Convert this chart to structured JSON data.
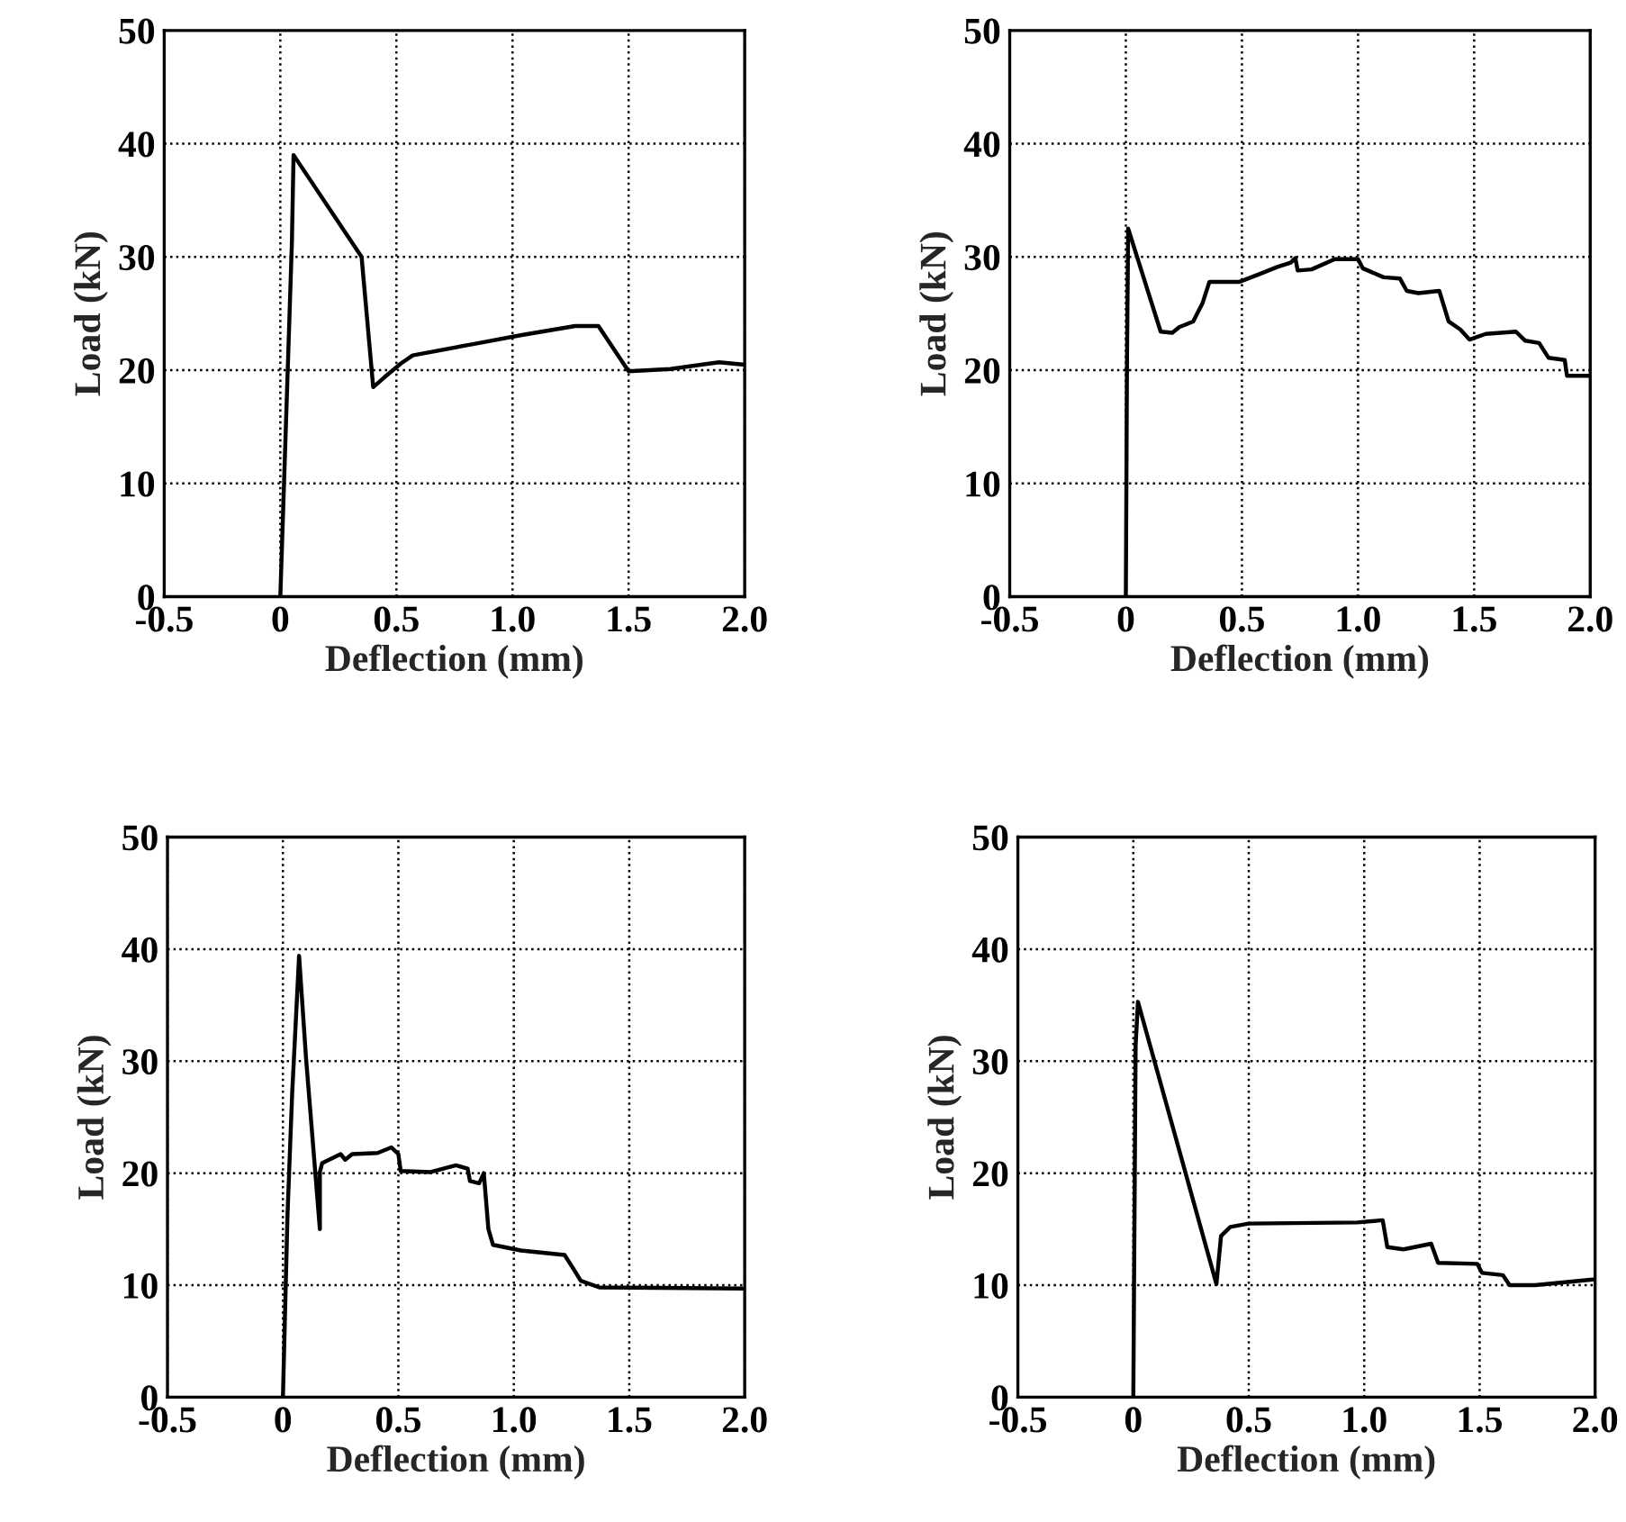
{
  "chart_data": [
    {
      "type": "line",
      "xlabel": "Deflection (mm)",
      "ylabel": "Load (kN)",
      "xlim": [
        -0.5,
        2.0
      ],
      "ylim": [
        0,
        50
      ],
      "xticks": [
        {
          "value": -0.5,
          "label": "-0.5"
        },
        {
          "value": 0,
          "label": "0"
        },
        {
          "value": 0.5,
          "label": "0.5"
        },
        {
          "value": 1.0,
          "label": "1.0"
        },
        {
          "value": 1.5,
          "label": "1.5"
        },
        {
          "value": 2.0,
          "label": "2.0"
        }
      ],
      "yticks": [
        0,
        10,
        20,
        30,
        40,
        50
      ],
      "grid": true,
      "line_style": "solid",
      "marker": "none",
      "series": [
        {
          "color": "#000000",
          "x": [
            0,
            0.05,
            0.057,
            0.35,
            0.4,
            0.45,
            0.52,
            0.57,
            0.83,
            1.04,
            1.27,
            1.37,
            1.5,
            1.68,
            1.89,
            1.99
          ],
          "values": [
            0,
            31.4,
            39,
            30,
            18.5,
            19.4,
            20.6,
            21.3,
            22.3,
            23.1,
            23.9,
            23.9,
            19.9,
            20.1,
            20.7,
            20.5
          ]
        }
      ]
    },
    {
      "type": "line",
      "xlabel": "Deflection (mm)",
      "ylabel": "Load (kN)",
      "xlim": [
        -0.5,
        2.0
      ],
      "ylim": [
        0,
        50
      ],
      "xticks": [
        {
          "value": -0.5,
          "label": "-0.5"
        },
        {
          "value": 0,
          "label": "0"
        },
        {
          "value": 0.5,
          "label": "0.5"
        },
        {
          "value": 1.0,
          "label": "1.0"
        },
        {
          "value": 1.5,
          "label": "1.5"
        },
        {
          "value": 2.0,
          "label": "2.0"
        }
      ],
      "yticks": [
        0,
        10,
        20,
        30,
        40,
        50
      ],
      "grid": true,
      "line_style": "solid",
      "marker": "none",
      "series": [
        {
          "color": "#000000",
          "x": [
            0,
            0.005,
            0.01,
            0.15,
            0.2,
            0.23,
            0.29,
            0.33,
            0.36,
            0.49,
            0.59,
            0.65,
            0.71,
            0.73,
            0.74,
            0.8,
            0.9,
            1.0,
            1.02,
            1.11,
            1.18,
            1.21,
            1.26,
            1.35,
            1.39,
            1.44,
            1.48,
            1.55,
            1.68,
            1.72,
            1.78,
            1.82,
            1.89,
            1.9,
            2.0
          ],
          "values": [
            0,
            20.9,
            32.5,
            23.4,
            23.3,
            23.8,
            24.3,
            25.9,
            27.8,
            27.8,
            28.6,
            29.1,
            29.5,
            29.9,
            28.8,
            28.9,
            29.8,
            29.8,
            29.0,
            28.2,
            28.1,
            27.0,
            26.8,
            27.0,
            24.3,
            23.6,
            22.7,
            23.2,
            23.4,
            22.6,
            22.4,
            21.1,
            20.9,
            19.5,
            19.5
          ]
        }
      ]
    },
    {
      "type": "line",
      "xlabel": "Deflection (mm)",
      "ylabel": "Load (kN)",
      "xlim": [
        -0.5,
        2.0
      ],
      "ylim": [
        0,
        50
      ],
      "xticks": [
        {
          "value": -0.5,
          "label": "-0.5"
        },
        {
          "value": 0,
          "label": "0"
        },
        {
          "value": 0.5,
          "label": "0.5"
        },
        {
          "value": 1.0,
          "label": "1.0"
        },
        {
          "value": 1.5,
          "label": "1.5"
        },
        {
          "value": 2.0,
          "label": "2.0"
        }
      ],
      "yticks": [
        0,
        10,
        20,
        30,
        40,
        50
      ],
      "grid": true,
      "line_style": "solid",
      "marker": "none",
      "series": [
        {
          "color": "#000000",
          "x": [
            0,
            0.02,
            0.04,
            0.07,
            0.1,
            0.16,
            0.16,
            0.17,
            0.25,
            0.27,
            0.3,
            0.41,
            0.47,
            0.5,
            0.51,
            0.64,
            0.75,
            0.8,
            0.81,
            0.85,
            0.87,
            0.89,
            0.91,
            1.03,
            1.22,
            1.26,
            1.29,
            1.37,
            1.99
          ],
          "values": [
            0,
            16.4,
            27.1,
            39.4,
            30.3,
            15.0,
            20.1,
            20.9,
            21.7,
            21.2,
            21.7,
            21.8,
            22.3,
            21.7,
            20.2,
            20.1,
            20.7,
            20.4,
            19.3,
            19.1,
            20.0,
            15.0,
            13.6,
            13.1,
            12.7,
            11.4,
            10.4,
            9.8,
            9.7
          ]
        }
      ]
    },
    {
      "type": "line",
      "xlabel": "Deflection (mm)",
      "ylabel": "Load (kN)",
      "xlim": [
        -0.5,
        2.0
      ],
      "ylim": [
        0,
        50
      ],
      "xticks": [
        {
          "value": -0.5,
          "label": "-0.5"
        },
        {
          "value": 0,
          "label": "0"
        },
        {
          "value": 0.5,
          "label": "0.5"
        },
        {
          "value": 1.0,
          "label": "1.0"
        },
        {
          "value": 1.5,
          "label": "1.5"
        },
        {
          "value": 2.0,
          "label": "2.0"
        }
      ],
      "yticks": [
        0,
        10,
        20,
        30,
        40,
        50
      ],
      "grid": true,
      "line_style": "solid",
      "marker": "none",
      "series": [
        {
          "color": "#000000",
          "x": [
            0,
            0.01,
            0.02,
            0.36,
            0.38,
            0.42,
            0.5,
            0.97,
            1.08,
            1.1,
            1.17,
            1.29,
            1.32,
            1.49,
            1.51,
            1.6,
            1.63,
            1.74,
            1.99
          ],
          "values": [
            0,
            31.4,
            35.3,
            10.1,
            14.4,
            15.2,
            15.5,
            15.6,
            15.8,
            13.4,
            13.2,
            13.7,
            12.0,
            11.9,
            11.1,
            10.9,
            10.0,
            10.0,
            10.5
          ]
        }
      ]
    }
  ]
}
